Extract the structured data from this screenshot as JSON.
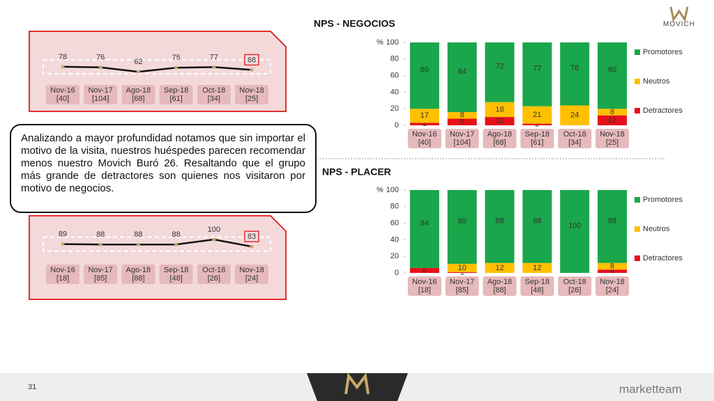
{
  "chart_data": [
    {
      "type": "line",
      "categories": [
        "Nov-16",
        "Nov-17",
        "Ago-18",
        "Sep-18",
        "Oct-18",
        "Nov-18"
      ],
      "category_counts": [
        "[40]",
        "[104]",
        "[68]",
        "[61]",
        "[34]",
        "[25]"
      ],
      "values": [
        78,
        76,
        62,
        75,
        77,
        68
      ],
      "color": "#111111"
    },
    {
      "type": "bar",
      "stacked": true,
      "title": "NPS - NEGOCIOS",
      "y_label": "%",
      "categories": [
        "Nov-16",
        "Nov-17",
        "Ago-18",
        "Sep-18",
        "Oct-18",
        "Nov-18"
      ],
      "category_counts": [
        "[40]",
        "[104]",
        "[68]",
        "[61]",
        "[34]",
        "[25]"
      ],
      "ylim": [
        0,
        100
      ],
      "yticks": [
        0,
        20,
        40,
        60,
        80,
        100
      ],
      "series": [
        {
          "name": "Detractores",
          "color": "#e8101a",
          "values": [
            3,
            8,
            10,
            2,
            0,
            12
          ]
        },
        {
          "name": "Neutros",
          "color": "#ffc000",
          "values": [
            17,
            8,
            18,
            21,
            24,
            8
          ]
        },
        {
          "name": "Promotores",
          "color": "#1aa64a",
          "values": [
            80,
            84,
            72,
            77,
            76,
            80
          ]
        }
      ]
    },
    {
      "type": "line",
      "categories": [
        "Nov-16",
        "Nov-17",
        "Ago-18",
        "Sep-18",
        "Oct-18",
        "Nov-18"
      ],
      "category_counts": [
        "[18]",
        "[85]",
        "[88]",
        "[48]",
        "[26]",
        "[24]"
      ],
      "values": [
        89,
        88,
        88,
        88,
        100,
        83
      ],
      "color": "#111111"
    },
    {
      "type": "bar",
      "stacked": true,
      "title": "NPS - PLACER",
      "y_label": "%",
      "categories": [
        "Nov-16",
        "Nov-17",
        "Ago-18",
        "Sep-18",
        "Oct-18",
        "Nov-18"
      ],
      "category_counts": [
        "[18]",
        "[85]",
        "[88]",
        "[48]",
        "[26]",
        "[24]"
      ],
      "ylim": [
        0,
        100
      ],
      "yticks": [
        0,
        20,
        40,
        60,
        80,
        100
      ],
      "series": [
        {
          "name": "Detractores",
          "color": "#e8101a",
          "values": [
            6,
            1,
            0,
            0,
            0,
            4
          ]
        },
        {
          "name": "Neutros",
          "color": "#ffc000",
          "values": [
            0,
            10,
            12,
            12,
            0,
            8
          ]
        },
        {
          "name": "Promotores",
          "color": "#1aa64a",
          "values": [
            94,
            89,
            88,
            88,
            100,
            88
          ]
        }
      ]
    }
  ],
  "note": "Analizando a mayor profundidad notamos que sin importar el motivo de la visita, nuestros huéspedes parecen recomendar menos nuestro Movich Buró 26. Resaltando que el grupo más grande de detractores son quienes nos visitaron por motivo de negocios.",
  "brand": "MOVICH",
  "footer": {
    "page": "31",
    "company": "marketteam"
  }
}
